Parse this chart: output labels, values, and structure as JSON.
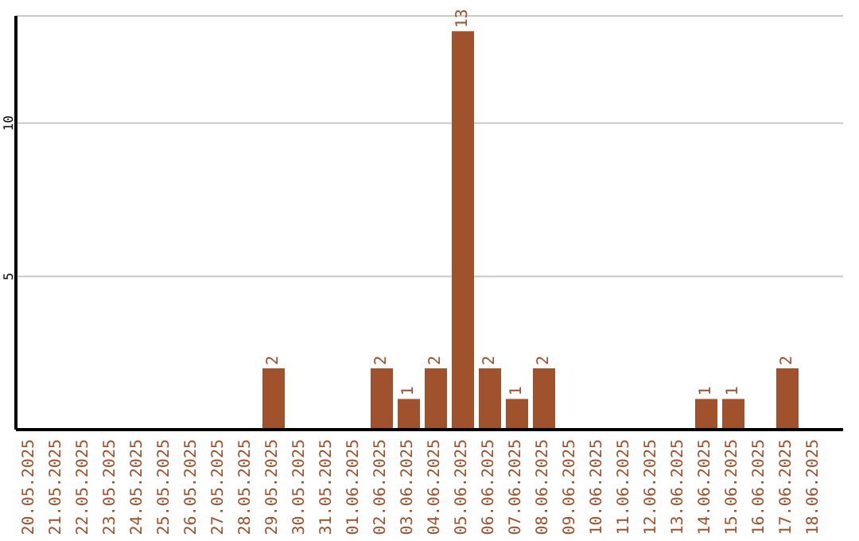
{
  "chart_data": {
    "type": "bar",
    "categories": [
      "20.05.2025",
      "21.05.2025",
      "22.05.2025",
      "23.05.2025",
      "24.05.2025",
      "25.05.2025",
      "26.05.2025",
      "27.05.2025",
      "28.05.2025",
      "29.05.2025",
      "30.05.2025",
      "31.05.2025",
      "01.06.2025",
      "02.06.2025",
      "03.06.2025",
      "04.06.2025",
      "05.06.2025",
      "06.06.2025",
      "07.06.2025",
      "08.06.2025",
      "09.06.2025",
      "10.06.2025",
      "11.06.2025",
      "12.06.2025",
      "13.06.2025",
      "14.06.2025",
      "15.06.2025",
      "16.06.2025",
      "17.06.2025",
      "18.06.2025"
    ],
    "values": [
      0,
      0,
      0,
      0,
      0,
      0,
      0,
      0,
      0,
      2,
      0,
      0,
      0,
      2,
      1,
      2,
      13,
      2,
      1,
      2,
      0,
      0,
      0,
      0,
      0,
      1,
      1,
      0,
      2,
      0
    ],
    "value_labels": [
      null,
      null,
      null,
      null,
      null,
      null,
      null,
      null,
      null,
      "2",
      null,
      null,
      null,
      "2",
      "1",
      "2",
      "13",
      "2",
      "1",
      "2",
      null,
      null,
      null,
      null,
      null,
      "1",
      "1",
      null,
      "2",
      null
    ],
    "color": "#a0522d",
    "ylim": [
      0,
      13.5
    ],
    "yticks": [
      5,
      10
    ],
    "grid": "y",
    "legend": false
  }
}
